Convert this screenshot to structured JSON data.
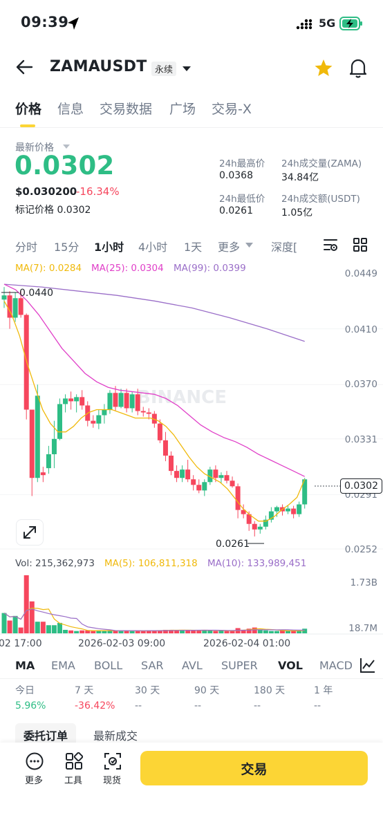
{
  "status": {
    "time": "09:39",
    "network": "5G"
  },
  "header": {
    "symbol": "ZAMAUSDT",
    "badge": "永续",
    "back_icon": "arrow-left-icon",
    "fav_icon": "star-icon",
    "alert_icon": "bell-icon"
  },
  "tabs": [
    {
      "label": "价格"
    },
    {
      "label": "信息"
    },
    {
      "label": "交易数据"
    },
    {
      "label": "广场"
    },
    {
      "label": "交易-X"
    }
  ],
  "price": {
    "last_label": "最新价格",
    "last": "0.0302",
    "usd": "$0.030200",
    "change_pct": "-16.34%",
    "mark": "标记价格 0.0302"
  },
  "stats": {
    "high_label": "24h最高价",
    "high": "0.0368",
    "vol_label": "24h成交量(ZAMA)",
    "vol": "34.84亿",
    "low_label": "24h最低价",
    "low": "0.0261",
    "turnover_label": "24h成交额(USDT)",
    "turnover": "1.05亿"
  },
  "intervals": [
    {
      "label": "分时"
    },
    {
      "label": "15分"
    },
    {
      "label": "1小时"
    },
    {
      "label": "4小时"
    },
    {
      "label": "1天"
    },
    {
      "label": "更多"
    },
    {
      "label": "深度["
    }
  ],
  "ma_legend": {
    "ma7": "MA(7): 0.0284",
    "ma25": "MA(25): 0.0304",
    "ma99": "MA(99): 0.0399"
  },
  "colors": {
    "up": "#2ebd85",
    "down": "#f6465d",
    "ma7": "#f0b90b",
    "ma25": "#e040c8",
    "ma99": "#9a6ec8",
    "accent": "#fcd535"
  },
  "chart_data": {
    "type": "candlestick",
    "y_ticks": [
      "0.0449",
      "0.0410",
      "0.0370",
      "0.0331",
      "0.0291",
      "0.0252"
    ],
    "high_marker": "0.0440",
    "low_marker": "0.0261",
    "last_price_tag": "0.0302",
    "watermark": "BINANCE",
    "x_ticks": [
      "02 17:00",
      "2026-02-03 09:00",
      "2026-02-04 01:00"
    ],
    "candles": [
      [
        0.0431,
        0.044,
        0.0425,
        0.0434
      ],
      [
        0.0434,
        0.0437,
        0.041,
        0.0418
      ],
      [
        0.0418,
        0.0436,
        0.0415,
        0.0432
      ],
      [
        0.0432,
        0.0437,
        0.0418,
        0.042
      ],
      [
        0.042,
        0.0421,
        0.0345,
        0.0352
      ],
      [
        0.0352,
        0.0352,
        0.029,
        0.0303
      ],
      [
        0.0303,
        0.037,
        0.03,
        0.0362
      ],
      [
        0.0307,
        0.0311,
        0.03,
        0.0305
      ],
      [
        0.031,
        0.0326,
        0.0306,
        0.032
      ],
      [
        0.032,
        0.0344,
        0.031,
        0.0331
      ],
      [
        0.0331,
        0.036,
        0.033,
        0.0356
      ],
      [
        0.0356,
        0.0363,
        0.035,
        0.036
      ],
      [
        0.036,
        0.0365,
        0.0352,
        0.0358
      ],
      [
        0.0358,
        0.0363,
        0.035,
        0.0361
      ],
      [
        0.0361,
        0.0366,
        0.0352,
        0.0355
      ],
      [
        0.0355,
        0.0358,
        0.034,
        0.0344
      ],
      [
        0.0344,
        0.0348,
        0.0339,
        0.0342
      ],
      [
        0.0342,
        0.0352,
        0.0338,
        0.0348
      ],
      [
        0.0348,
        0.0356,
        0.0342,
        0.0352
      ],
      [
        0.0352,
        0.0366,
        0.0349,
        0.0364
      ],
      [
        0.0364,
        0.0369,
        0.0351,
        0.0354
      ],
      [
        0.0354,
        0.0367,
        0.0353,
        0.0364
      ],
      [
        0.0364,
        0.0367,
        0.035,
        0.0353
      ],
      [
        0.0353,
        0.0365,
        0.035,
        0.0363
      ],
      [
        0.0363,
        0.0367,
        0.0348,
        0.0351
      ],
      [
        0.0351,
        0.0354,
        0.0347,
        0.035
      ],
      [
        0.035,
        0.0353,
        0.0345,
        0.0349
      ],
      [
        0.0349,
        0.0351,
        0.0339,
        0.0342
      ],
      [
        0.0342,
        0.0345,
        0.0328,
        0.033
      ],
      [
        0.033,
        0.0336,
        0.0315,
        0.0319
      ],
      [
        0.0319,
        0.0322,
        0.0305,
        0.0308
      ],
      [
        0.0308,
        0.0312,
        0.03,
        0.0303
      ],
      [
        0.0303,
        0.0312,
        0.03,
        0.0309
      ],
      [
        0.0309,
        0.0316,
        0.03,
        0.0302
      ],
      [
        0.0302,
        0.0305,
        0.0294,
        0.0298
      ],
      [
        0.0298,
        0.0302,
        0.0292,
        0.0294
      ],
      [
        0.0294,
        0.0302,
        0.029,
        0.03
      ],
      [
        0.03,
        0.0311,
        0.0298,
        0.0309
      ],
      [
        0.0309,
        0.0312,
        0.03,
        0.0303
      ],
      [
        0.0303,
        0.0307,
        0.0299,
        0.0305
      ],
      [
        0.0305,
        0.0308,
        0.0299,
        0.0301
      ],
      [
        0.0301,
        0.0304,
        0.0296,
        0.0297
      ],
      [
        0.0297,
        0.0299,
        0.0274,
        0.028
      ],
      [
        0.028,
        0.0284,
        0.0274,
        0.0277
      ],
      [
        0.0277,
        0.0279,
        0.0265,
        0.027
      ],
      [
        0.027,
        0.0272,
        0.0261,
        0.0266
      ],
      [
        0.0266,
        0.027,
        0.0263,
        0.0268
      ],
      [
        0.0268,
        0.0276,
        0.0266,
        0.0273
      ],
      [
        0.0273,
        0.0282,
        0.0271,
        0.0279
      ],
      [
        0.0279,
        0.0283,
        0.0275,
        0.0282
      ],
      [
        0.0282,
        0.0284,
        0.0276,
        0.0279
      ],
      [
        0.0279,
        0.0283,
        0.0277,
        0.0281
      ],
      [
        0.0281,
        0.0283,
        0.0274,
        0.0277
      ],
      [
        0.0277,
        0.0286,
        0.0275,
        0.0284
      ],
      [
        0.0284,
        0.0303,
        0.0281,
        0.0302
      ]
    ],
    "ma7": [
      0.043,
      0.042,
      0.0405,
      0.0385,
      0.0368,
      0.0352,
      0.0342,
      0.0336,
      0.0336,
      0.034,
      0.0346,
      0.035,
      0.0352,
      0.0352,
      0.0352,
      0.035,
      0.0348,
      0.0346,
      0.0346,
      0.0346,
      0.0344,
      0.034,
      0.0334,
      0.0326,
      0.0318,
      0.0311,
      0.0306,
      0.0303,
      0.03,
      0.0295,
      0.0288,
      0.0281,
      0.0276,
      0.0272,
      0.0272,
      0.0275,
      0.028,
      0.0284,
      0.0289,
      0.0302
    ],
    "ma25": [
      0.0442,
      0.0438,
      0.043,
      0.042,
      0.0408,
      0.0396,
      0.0387,
      0.0378,
      0.0372,
      0.0368,
      0.0366,
      0.0365,
      0.0364,
      0.0363,
      0.036,
      0.0355,
      0.0348,
      0.0341,
      0.0336,
      0.0332,
      0.0329,
      0.0325,
      0.032,
      0.0316,
      0.0312,
      0.0308,
      0.0304
    ],
    "ma99": [
      0.0442,
      0.044,
      0.0437,
      0.0434,
      0.043,
      0.0425,
      0.0418,
      0.041,
      0.0401
    ],
    "volume_label": "Vol: 215,362,973",
    "volume_ma5": "MA(5): 106,811,318",
    "volume_ma10": "MA(10): 133,989,451",
    "volume_ticks": [
      "1.73B",
      "18.7M"
    ],
    "volumes": [
      0.35,
      0.22,
      0.3,
      0.1,
      1.0,
      0.55,
      0.2,
      0.2,
      0.14,
      0.14,
      0.18,
      0.06,
      0.05,
      0.04,
      0.05,
      0.05,
      0.04,
      0.05,
      0.04,
      0.05,
      0.05,
      0.04,
      0.05,
      0.04,
      0.05,
      0.04,
      0.05,
      0.05,
      0.05,
      0.06,
      0.06,
      0.05,
      0.06,
      0.05,
      0.05,
      0.05,
      0.06,
      0.05,
      0.04,
      0.05,
      0.04,
      0.04,
      0.09,
      0.06,
      0.08,
      0.1,
      0.06,
      0.05,
      0.04,
      0.04,
      0.05,
      0.04,
      0.05,
      0.04,
      0.08
    ]
  },
  "indicators": [
    {
      "label": "MA"
    },
    {
      "label": "EMA"
    },
    {
      "label": "BOLL"
    },
    {
      "label": "SAR"
    },
    {
      "label": "AVL"
    },
    {
      "label": "SUPER"
    },
    {
      "label": "VOL"
    },
    {
      "label": "MACD"
    }
  ],
  "periods": [
    {
      "label": "今日",
      "value": "5.96%"
    },
    {
      "label": "7 天",
      "value": "-36.42%"
    },
    {
      "label": "30 天",
      "value": "--"
    },
    {
      "label": "90 天",
      "value": "--"
    },
    {
      "label": "180 天",
      "value": "--"
    },
    {
      "label": "1 年",
      "value": "--"
    }
  ],
  "orders": {
    "open_orders": "委托订单",
    "recent_trades": "最新成交"
  },
  "bottom": {
    "more": "更多",
    "tools": "工具",
    "spot": "现货",
    "trade": "交易"
  }
}
